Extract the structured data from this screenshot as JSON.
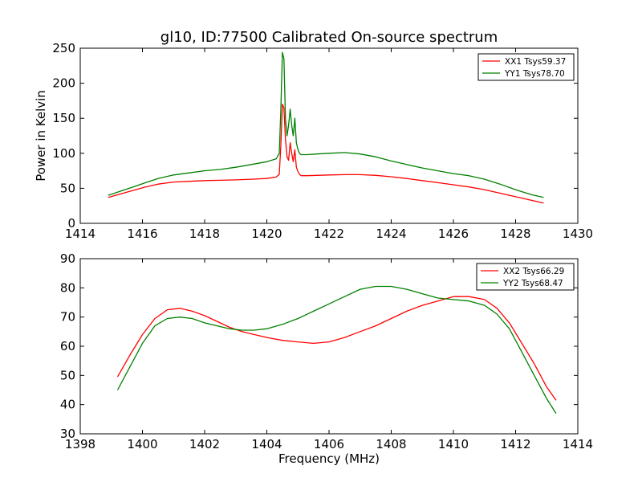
{
  "figure_title": "gl10, ID:77500 Calibrated On-source spectrum",
  "chart_data": [
    {
      "type": "line",
      "title": "gl10, ID:77500 Calibrated On-source spectrum",
      "xlabel": "",
      "ylabel": "Power in Kelvin",
      "xlim": [
        1414,
        1430
      ],
      "ylim": [
        0,
        250
      ],
      "xticks": [
        1414,
        1416,
        1418,
        1420,
        1422,
        1424,
        1426,
        1428,
        1430
      ],
      "yticks": [
        0,
        50,
        100,
        150,
        200,
        250
      ],
      "legend_position": "top-right",
      "series": [
        {
          "name": "XX1 Tsys59.37",
          "color": "#ff0000",
          "x": [
            1414.9,
            1415.3,
            1415.7,
            1416.1,
            1416.5,
            1417.0,
            1417.5,
            1418.0,
            1418.5,
            1419.0,
            1419.5,
            1420.0,
            1420.3,
            1420.4,
            1420.45,
            1420.5,
            1420.55,
            1420.6,
            1420.65,
            1420.7,
            1420.75,
            1420.8,
            1420.85,
            1420.9,
            1420.95,
            1421.0,
            1421.05,
            1421.1,
            1421.3,
            1421.6,
            1422.0,
            1422.5,
            1423.0,
            1423.5,
            1424.0,
            1424.5,
            1425.0,
            1425.5,
            1426.0,
            1426.5,
            1427.0,
            1427.5,
            1428.0,
            1428.5,
            1428.9
          ],
          "y": [
            37,
            42,
            47,
            52,
            56,
            59,
            60,
            61,
            61.5,
            62,
            63,
            64,
            66,
            70,
            110,
            170,
            165,
            120,
            95,
            90,
            115,
            100,
            88,
            105,
            80,
            74,
            70,
            68,
            68,
            68.5,
            69,
            69.5,
            69.5,
            68.5,
            66.5,
            64,
            61,
            58,
            55,
            52,
            48,
            43,
            38,
            33,
            29
          ]
        },
        {
          "name": "YY1 Tsys78.70",
          "color": "#008000",
          "x": [
            1414.9,
            1415.3,
            1415.7,
            1416.1,
            1416.5,
            1417.0,
            1417.5,
            1418.0,
            1418.5,
            1419.0,
            1419.5,
            1420.0,
            1420.3,
            1420.4,
            1420.45,
            1420.5,
            1420.55,
            1420.6,
            1420.65,
            1420.7,
            1420.75,
            1420.8,
            1420.85,
            1420.9,
            1420.95,
            1421.0,
            1421.05,
            1421.1,
            1421.3,
            1421.6,
            1422.0,
            1422.5,
            1423.0,
            1423.5,
            1424.0,
            1424.5,
            1425.0,
            1425.5,
            1426.0,
            1426.5,
            1427.0,
            1427.5,
            1428.0,
            1428.5,
            1428.9
          ],
          "y": [
            40,
            46,
            52,
            58,
            64,
            69,
            72,
            75,
            77,
            80,
            84,
            88,
            92,
            100,
            160,
            244,
            235,
            150,
            125,
            140,
            163,
            140,
            125,
            150,
            115,
            105,
            100,
            98,
            98,
            99,
            100,
            101,
            99,
            95,
            89,
            84,
            79,
            75,
            71,
            68,
            63,
            56,
            48,
            41,
            37
          ]
        }
      ]
    },
    {
      "type": "line",
      "title": "",
      "xlabel": "Frequency (MHz)",
      "ylabel": "",
      "xlim": [
        1398,
        1414
      ],
      "ylim": [
        30,
        90
      ],
      "xticks": [
        1398,
        1400,
        1402,
        1404,
        1406,
        1408,
        1410,
        1412,
        1414
      ],
      "yticks": [
        30,
        40,
        50,
        60,
        70,
        80,
        90
      ],
      "legend_position": "top-right",
      "series": [
        {
          "name": "XX2 Tsys66.29",
          "color": "#ff0000",
          "x": [
            1399.2,
            1399.6,
            1400.0,
            1400.4,
            1400.8,
            1401.2,
            1401.6,
            1402.0,
            1402.4,
            1402.8,
            1403.2,
            1403.6,
            1404.0,
            1404.5,
            1405.0,
            1405.5,
            1406.0,
            1406.5,
            1407.0,
            1407.5,
            1408.0,
            1408.5,
            1409.0,
            1409.5,
            1410.0,
            1410.5,
            1411.0,
            1411.4,
            1411.8,
            1412.2,
            1412.6,
            1413.0,
            1413.3
          ],
          "y": [
            49.5,
            57,
            64,
            69.5,
            72.5,
            73,
            72,
            70.5,
            68.5,
            66.5,
            65,
            64,
            63,
            62,
            61.5,
            61,
            61.5,
            63,
            65,
            67,
            69.5,
            72,
            74,
            75.5,
            77,
            77,
            76,
            73,
            68,
            61,
            54,
            46,
            41.5
          ]
        },
        {
          "name": "YY2 Tsys68.47",
          "color": "#008000",
          "x": [
            1399.2,
            1399.6,
            1400.0,
            1400.4,
            1400.8,
            1401.2,
            1401.6,
            1402.0,
            1402.4,
            1402.8,
            1403.2,
            1403.6,
            1404.0,
            1404.5,
            1405.0,
            1405.5,
            1406.0,
            1406.5,
            1407.0,
            1407.5,
            1408.0,
            1408.5,
            1409.0,
            1409.5,
            1410.0,
            1410.5,
            1411.0,
            1411.4,
            1411.8,
            1412.2,
            1412.6,
            1413.0,
            1413.3
          ],
          "y": [
            45,
            53,
            61,
            67,
            69.5,
            70,
            69.5,
            68,
            67,
            66,
            65.5,
            65.5,
            66,
            67.5,
            69.5,
            72,
            74.5,
            77,
            79.5,
            80.5,
            80.5,
            79.5,
            78,
            76.5,
            76,
            75.5,
            74,
            71,
            66,
            58,
            50,
            42,
            37
          ]
        }
      ]
    }
  ]
}
